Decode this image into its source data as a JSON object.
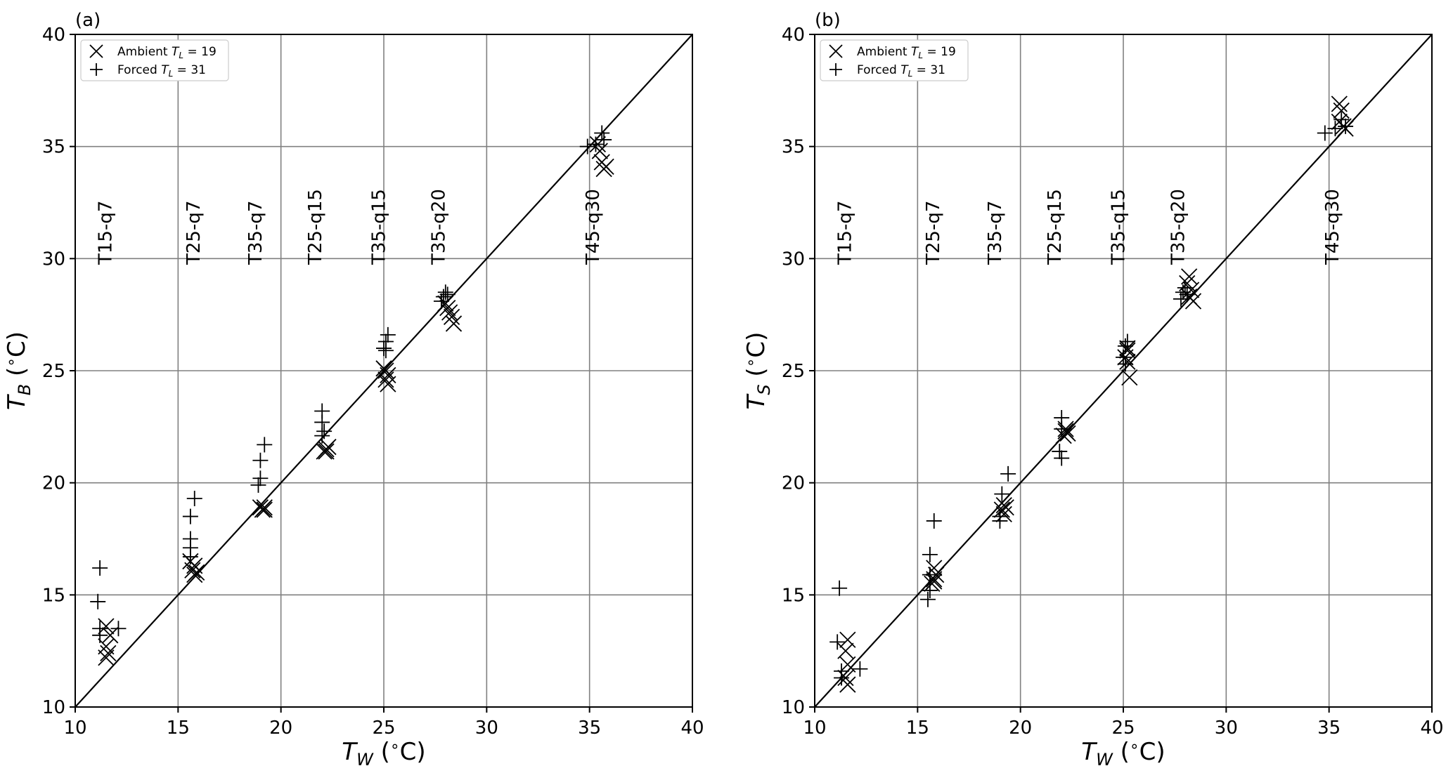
{
  "chart_data": [
    {
      "type": "scatter",
      "panel_label": "(a)",
      "xlabel": "T_W (°C)",
      "xlabel_main": "T",
      "xlabel_sub": "W",
      "xlabel_unit": " (",
      "xlabel_deg": "∘",
      "xlabel_tail": "C)",
      "ylabel": "T_B (°C)",
      "ylabel_main": "T",
      "ylabel_sub": "B",
      "ylabel_unit": " (",
      "ylabel_deg": "∘",
      "ylabel_tail": "C)",
      "xlim": [
        10,
        40
      ],
      "ylim": [
        10,
        40
      ],
      "xticks": [
        "10",
        "15",
        "20",
        "25",
        "30",
        "35",
        "40"
      ],
      "yticks": [
        "10",
        "15",
        "20",
        "25",
        "30",
        "35",
        "40"
      ],
      "grid": true,
      "legend_position": "top-left",
      "reference_line": "y = x",
      "run_labels": [
        {
          "text": "T15-q7",
          "x": 11.5
        },
        {
          "text": "T25-q7",
          "x": 15.8
        },
        {
          "text": "T35-q7",
          "x": 18.8
        },
        {
          "text": "T25-q15",
          "x": 21.7
        },
        {
          "text": "T35-q15",
          "x": 24.8
        },
        {
          "text": "T35-q20",
          "x": 27.7
        },
        {
          "text": "T45-q30",
          "x": 35.2
        }
      ],
      "series": [
        {
          "name": "Ambient T_L = 19",
          "legend_prefix": "Ambient ",
          "legend_var": "T",
          "legend_sub": "L",
          "legend_suffix": " = 19",
          "marker": "x",
          "points": [
            [
              11.5,
              13.6
            ],
            [
              11.7,
              13.2
            ],
            [
              11.5,
              12.7
            ],
            [
              11.6,
              12.4
            ],
            [
              11.5,
              12.2
            ],
            [
              15.6,
              16.5
            ],
            [
              15.7,
              16.1
            ],
            [
              15.8,
              16.3
            ],
            [
              15.9,
              16.0
            ],
            [
              15.8,
              15.9
            ],
            [
              19.1,
              18.8
            ],
            [
              19.2,
              18.9
            ],
            [
              19.0,
              18.9
            ],
            [
              19.2,
              18.8
            ],
            [
              22.1,
              21.4
            ],
            [
              22.2,
              21.5
            ],
            [
              22.3,
              21.6
            ],
            [
              22.2,
              21.4
            ],
            [
              25.1,
              25.0
            ],
            [
              25.2,
              24.8
            ],
            [
              25.1,
              24.6
            ],
            [
              25.2,
              24.4
            ],
            [
              25.0,
              25.1
            ],
            [
              28.0,
              28.0
            ],
            [
              28.1,
              27.8
            ],
            [
              28.2,
              27.6
            ],
            [
              28.3,
              27.4
            ],
            [
              28.4,
              27.1
            ],
            [
              35.4,
              35.1
            ],
            [
              35.5,
              34.8
            ],
            [
              35.6,
              34.3
            ],
            [
              35.7,
              34.0
            ],
            [
              35.8,
              34.1
            ]
          ]
        },
        {
          "name": "Forced T_L = 31",
          "legend_prefix": "Forced ",
          "legend_var": "T",
          "legend_sub": "L",
          "legend_suffix": " = 31",
          "marker": "+",
          "points": [
            [
              11.2,
              16.2
            ],
            [
              11.1,
              14.7
            ],
            [
              11.2,
              13.5
            ],
            [
              11.2,
              13.2
            ],
            [
              12.1,
              13.5
            ],
            [
              15.6,
              18.5
            ],
            [
              15.8,
              19.3
            ],
            [
              15.6,
              17.5
            ],
            [
              15.6,
              17.1
            ],
            [
              15.6,
              16.7
            ],
            [
              19.2,
              21.7
            ],
            [
              19.0,
              21.0
            ],
            [
              19.0,
              20.2
            ],
            [
              18.9,
              19.9
            ],
            [
              22.0,
              23.2
            ],
            [
              22.0,
              22.7
            ],
            [
              22.1,
              22.3
            ],
            [
              22.0,
              22.1
            ],
            [
              25.2,
              26.6
            ],
            [
              25.1,
              26.3
            ],
            [
              25.0,
              26.0
            ],
            [
              25.1,
              25.9
            ],
            [
              28.0,
              28.5
            ],
            [
              27.9,
              28.3
            ],
            [
              27.8,
              28.1
            ],
            [
              28.1,
              28.4
            ],
            [
              34.9,
              35.0
            ],
            [
              35.3,
              35.1
            ],
            [
              35.6,
              35.6
            ],
            [
              35.7,
              35.3
            ]
          ]
        }
      ]
    },
    {
      "type": "scatter",
      "panel_label": "(b)",
      "xlabel": "T_W (°C)",
      "xlabel_main": "T",
      "xlabel_sub": "W",
      "xlabel_unit": " (",
      "xlabel_deg": "∘",
      "xlabel_tail": "C)",
      "ylabel": "T_S (°C)",
      "ylabel_main": "T",
      "ylabel_sub": "S",
      "ylabel_unit": " (",
      "ylabel_deg": "∘",
      "ylabel_tail": "C)",
      "xlim": [
        10,
        40
      ],
      "ylim": [
        10,
        40
      ],
      "xticks": [
        "10",
        "15",
        "20",
        "25",
        "30",
        "35",
        "40"
      ],
      "yticks": [
        "10",
        "15",
        "20",
        "25",
        "30",
        "35",
        "40"
      ],
      "grid": true,
      "legend_position": "top-left",
      "reference_line": "y = x",
      "run_labels": [
        {
          "text": "T15-q7",
          "x": 11.5
        },
        {
          "text": "T25-q7",
          "x": 15.8
        },
        {
          "text": "T35-q7",
          "x": 18.8
        },
        {
          "text": "T25-q15",
          "x": 21.7
        },
        {
          "text": "T35-q15",
          "x": 24.8
        },
        {
          "text": "T35-q20",
          "x": 27.7
        },
        {
          "text": "T45-q30",
          "x": 35.2
        }
      ],
      "series": [
        {
          "name": "Ambient T_L = 19",
          "legend_prefix": "Ambient ",
          "legend_var": "T",
          "legend_sub": "L",
          "legend_suffix": " = 19",
          "marker": "x",
          "points": [
            [
              11.6,
              13.0
            ],
            [
              11.5,
              12.5
            ],
            [
              11.6,
              11.9
            ],
            [
              11.5,
              11.3
            ],
            [
              11.6,
              11.0
            ],
            [
              15.8,
              15.7
            ],
            [
              15.7,
              15.5
            ],
            [
              15.9,
              15.9
            ],
            [
              15.8,
              16.2
            ],
            [
              15.8,
              15.6
            ],
            [
              19.2,
              19.0
            ],
            [
              19.1,
              18.8
            ],
            [
              19.2,
              18.6
            ],
            [
              19.3,
              18.9
            ],
            [
              22.2,
              22.3
            ],
            [
              22.1,
              22.1
            ],
            [
              22.3,
              22.2
            ],
            [
              22.2,
              22.4
            ],
            [
              25.2,
              25.9
            ],
            [
              25.1,
              25.6
            ],
            [
              25.2,
              25.4
            ],
            [
              25.3,
              24.7
            ],
            [
              25.2,
              26.0
            ],
            [
              28.2,
              29.2
            ],
            [
              28.1,
              28.9
            ],
            [
              28.3,
              28.6
            ],
            [
              28.2,
              28.3
            ],
            [
              28.4,
              28.1
            ],
            [
              35.5,
              36.9
            ],
            [
              35.6,
              36.6
            ],
            [
              35.5,
              36.1
            ],
            [
              35.7,
              35.9
            ],
            [
              35.8,
              35.8
            ]
          ]
        },
        {
          "name": "Forced T_L = 31",
          "legend_prefix": "Forced ",
          "legend_var": "T",
          "legend_sub": "L",
          "legend_suffix": " = 31",
          "marker": "+",
          "points": [
            [
              11.2,
              15.3
            ],
            [
              11.1,
              12.9
            ],
            [
              11.3,
              11.6
            ],
            [
              12.2,
              11.7
            ],
            [
              11.3,
              11.3
            ],
            [
              15.8,
              18.3
            ],
            [
              15.6,
              16.8
            ],
            [
              15.6,
              15.9
            ],
            [
              15.6,
              15.2
            ],
            [
              15.5,
              14.8
            ],
            [
              19.4,
              20.4
            ],
            [
              19.1,
              19.5
            ],
            [
              19.0,
              18.5
            ],
            [
              19.0,
              18.3
            ],
            [
              22.0,
              22.9
            ],
            [
              22.0,
              22.4
            ],
            [
              21.9,
              21.4
            ],
            [
              22.0,
              21.1
            ],
            [
              25.2,
              26.3
            ],
            [
              25.1,
              26.1
            ],
            [
              25.0,
              25.6
            ],
            [
              25.1,
              25.3
            ],
            [
              28.0,
              28.7
            ],
            [
              27.9,
              28.5
            ],
            [
              27.8,
              28.2
            ],
            [
              28.1,
              28.4
            ],
            [
              34.8,
              35.6
            ],
            [
              35.3,
              35.8
            ],
            [
              35.6,
              36.2
            ],
            [
              35.8,
              35.9
            ]
          ]
        }
      ]
    }
  ]
}
